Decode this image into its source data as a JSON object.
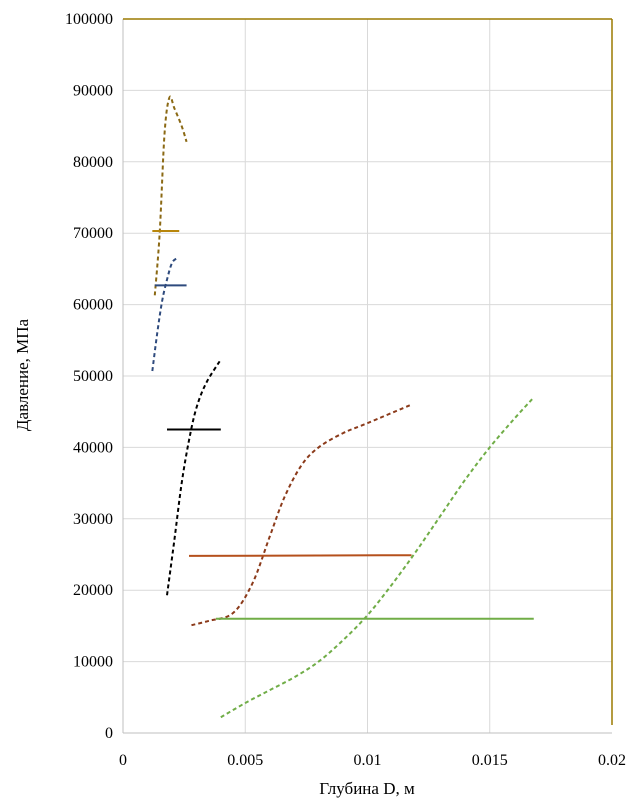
{
  "chart_data": {
    "type": "line",
    "title": "",
    "xlabel": "Глубина D, м",
    "ylabel": "Давление, МПа",
    "xlim": [
      0,
      0.02
    ],
    "ylim": [
      0,
      100000
    ],
    "x_ticks": [
      "0",
      "0.005",
      "0.01",
      "0.015",
      "0.02"
    ],
    "x_tick_values": [
      0,
      0.005,
      0.01,
      0.015,
      0.02
    ],
    "y_ticks": [
      "0",
      "10000",
      "20000",
      "30000",
      "40000",
      "50000",
      "60000",
      "70000",
      "80000",
      "90000",
      "100000"
    ],
    "y_tick_values": [
      0,
      10000,
      20000,
      30000,
      40000,
      50000,
      60000,
      70000,
      80000,
      90000,
      100000
    ],
    "grid": true,
    "legend": "none",
    "series": [
      {
        "style": "dashed",
        "color": "#8B6914",
        "x": [
          0.0013,
          0.0015,
          0.0017,
          0.0019,
          0.0021,
          0.0024,
          0.0026
        ],
        "y": [
          61300,
          70000,
          84000,
          89000,
          87500,
          85000,
          82800
        ]
      },
      {
        "style": "solid",
        "color": "#B8860B",
        "x": [
          0.0012,
          0.0023
        ],
        "y": [
          70300,
          70300
        ]
      },
      {
        "style": "dashed",
        "color": "#2E4A7D",
        "x": [
          0.0012,
          0.0014,
          0.0016,
          0.0018,
          0.002,
          0.0022
        ],
        "y": [
          50700,
          56000,
          60500,
          63500,
          65800,
          66500
        ]
      },
      {
        "style": "solid",
        "color": "#2E4A7D",
        "x": [
          0.0013,
          0.0026
        ],
        "y": [
          62700,
          62700
        ]
      },
      {
        "style": "dashed",
        "color": "#000000",
        "x": [
          0.0018,
          0.0021,
          0.0024,
          0.0027,
          0.003,
          0.0034,
          0.004
        ],
        "y": [
          19300,
          27000,
          35000,
          41000,
          45500,
          49000,
          52300
        ]
      },
      {
        "style": "solid",
        "color": "#000000",
        "x": [
          0.0018,
          0.004
        ],
        "y": [
          42500,
          42500
        ]
      },
      {
        "style": "dashed",
        "color": "#8B3A1A",
        "x": [
          0.0028,
          0.0035,
          0.0045,
          0.0053,
          0.006,
          0.0066,
          0.0073,
          0.008,
          0.009,
          0.01,
          0.0118
        ],
        "y": [
          15100,
          15700,
          16800,
          21000,
          27500,
          33000,
          37500,
          40000,
          42000,
          43400,
          46000
        ]
      },
      {
        "style": "solid",
        "color": "#B5501C",
        "x": [
          0.0027,
          0.0118
        ],
        "y": [
          24800,
          24900
        ]
      },
      {
        "style": "dashed",
        "color": "#70AD47",
        "x": [
          0.004,
          0.005,
          0.006,
          0.007,
          0.008,
          0.009,
          0.01,
          0.011,
          0.012,
          0.013,
          0.014,
          0.015,
          0.016,
          0.0168
        ],
        "y": [
          2200,
          4200,
          6000,
          7800,
          10000,
          13000,
          16500,
          20800,
          25500,
          30500,
          35500,
          40000,
          44000,
          47000
        ]
      },
      {
        "style": "solid",
        "color": "#70AD47",
        "x": [
          0.0038,
          0.0168
        ],
        "y": [
          16000,
          16000
        ]
      }
    ]
  }
}
